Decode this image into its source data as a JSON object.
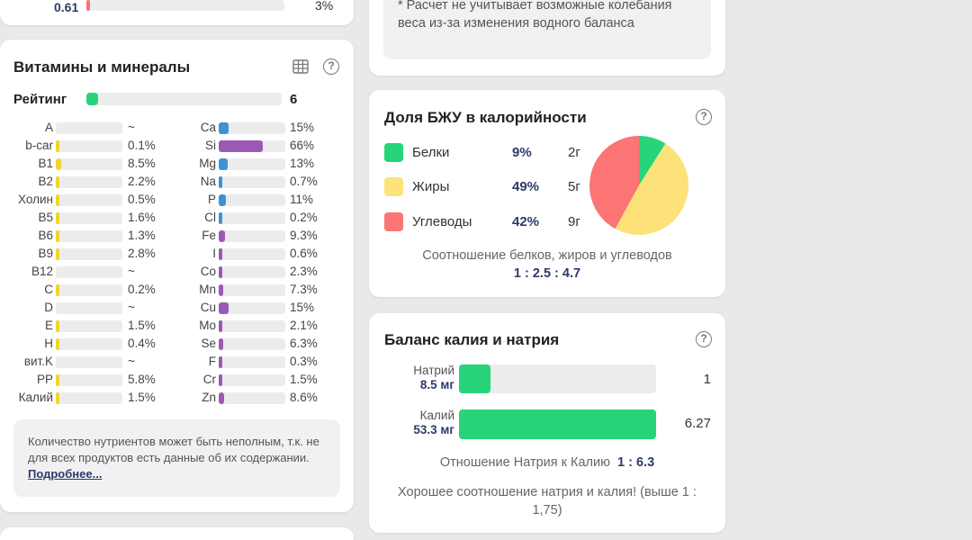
{
  "top_left": {
    "value": "0.61",
    "right_text": "3%"
  },
  "top_right": {
    "note": "* Расчет не учитывает возможные колебания веса из-за изменения водного баланса"
  },
  "vitamins": {
    "title": "Витамины и минералы",
    "table_icon": "table-icon",
    "help_icon": "?",
    "rating_label": "Рейтинг",
    "rating_value": "6",
    "rating_fraction": 0.06,
    "left": [
      {
        "name": "A",
        "value": "~",
        "fill": 0,
        "color": "#f2d52b"
      },
      {
        "name": "b-car",
        "value": "0.1%",
        "fill": 0.01,
        "color": "#f2d52b"
      },
      {
        "name": "B1",
        "value": "8.5%",
        "fill": 0.085,
        "color": "#f2d52b"
      },
      {
        "name": "B2",
        "value": "2.2%",
        "fill": 0.022,
        "color": "#f2d52b"
      },
      {
        "name": "Холин",
        "value": "0.5%",
        "fill": 0.01,
        "color": "#f2d52b"
      },
      {
        "name": "B5",
        "value": "1.6%",
        "fill": 0.016,
        "color": "#f2d52b"
      },
      {
        "name": "B6",
        "value": "1.3%",
        "fill": 0.013,
        "color": "#f2d52b"
      },
      {
        "name": "B9",
        "value": "2.8%",
        "fill": 0.028,
        "color": "#f2d52b"
      },
      {
        "name": "B12",
        "value": "~",
        "fill": 0,
        "color": "#f2d52b"
      },
      {
        "name": "C",
        "value": "0.2%",
        "fill": 0.01,
        "color": "#f2d52b"
      },
      {
        "name": "D",
        "value": "~",
        "fill": 0,
        "color": "#f2d52b"
      },
      {
        "name": "E",
        "value": "1.5%",
        "fill": 0.015,
        "color": "#f2d52b"
      },
      {
        "name": "H",
        "value": "0.4%",
        "fill": 0.01,
        "color": "#f2d52b"
      },
      {
        "name": "вит.K",
        "value": "~",
        "fill": 0,
        "color": "#f2d52b"
      },
      {
        "name": "PP",
        "value": "5.8%",
        "fill": 0.058,
        "color": "#f2d52b"
      },
      {
        "name": "Калий",
        "value": "1.5%",
        "fill": 0.015,
        "color": "#f2d52b"
      }
    ],
    "right": [
      {
        "name": "Ca",
        "value": "15%",
        "fill": 0.15,
        "color": "#3d93d8"
      },
      {
        "name": "Si",
        "value": "66%",
        "fill": 0.66,
        "color": "#9b59b6"
      },
      {
        "name": "Mg",
        "value": "13%",
        "fill": 0.13,
        "color": "#3d93d8"
      },
      {
        "name": "Na",
        "value": "0.7%",
        "fill": 0.01,
        "color": "#3d93d8"
      },
      {
        "name": "P",
        "value": "11%",
        "fill": 0.11,
        "color": "#3d93d8"
      },
      {
        "name": "Cl",
        "value": "0.2%",
        "fill": 0.01,
        "color": "#3d93d8"
      },
      {
        "name": "Fe",
        "value": "9.3%",
        "fill": 0.093,
        "color": "#9b59b6"
      },
      {
        "name": "I",
        "value": "0.6%",
        "fill": 0.01,
        "color": "#9b59b6"
      },
      {
        "name": "Co",
        "value": "2.3%",
        "fill": 0.023,
        "color": "#9b59b6"
      },
      {
        "name": "Mn",
        "value": "7.3%",
        "fill": 0.073,
        "color": "#9b59b6"
      },
      {
        "name": "Cu",
        "value": "15%",
        "fill": 0.15,
        "color": "#9b59b6"
      },
      {
        "name": "Mo",
        "value": "2.1%",
        "fill": 0.021,
        "color": "#9b59b6"
      },
      {
        "name": "Se",
        "value": "6.3%",
        "fill": 0.063,
        "color": "#9b59b6"
      },
      {
        "name": "F",
        "value": "0.3%",
        "fill": 0.01,
        "color": "#9b59b6"
      },
      {
        "name": "Cr",
        "value": "1.5%",
        "fill": 0.015,
        "color": "#9b59b6"
      },
      {
        "name": "Zn",
        "value": "8.6%",
        "fill": 0.086,
        "color": "#9b59b6"
      }
    ],
    "note_text": "Количество нутриентов может быть неполным, т.к. не для всех продуктов есть данные об их содержании.",
    "note_link": "Подробнее..."
  },
  "bju": {
    "title": "Доля БЖУ в калорийности",
    "help_icon": "?",
    "rows": [
      {
        "label": "Белки",
        "pct": "9%",
        "grams": "2г",
        "color": "#27d47a",
        "share": 9
      },
      {
        "label": "Жиры",
        "pct": "49%",
        "grams": "5г",
        "color": "#fde27a",
        "share": 49
      },
      {
        "label": "Углеводы",
        "pct": "42%",
        "grams": "9г",
        "color": "#fb7575",
        "share": 42
      }
    ],
    "caption": "Соотношение белков, жиров и углеводов",
    "ratio": "1 : 2.5 : 4.7"
  },
  "kna": {
    "title": "Баланс калия и натрия",
    "help_icon": "?",
    "sodium": {
      "name": "Натрий",
      "amount": "8.5 мг",
      "ratio": "1",
      "fill": 0.16
    },
    "potassium": {
      "name": "Калий",
      "amount": "53.3 мг",
      "ratio": "6.27",
      "fill": 1.0
    },
    "relation_label": "Отношение Натрия к Калию",
    "relation_value": "1 : 6.3",
    "verdict": "Хорошее соотношение натрия и калия! (выше 1 : 1,75)"
  }
}
